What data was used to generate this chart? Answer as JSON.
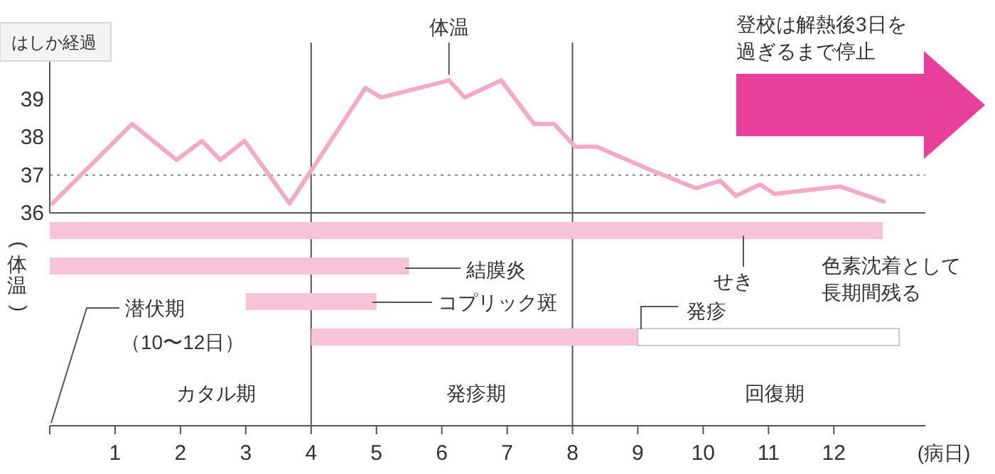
{
  "chart_data": [
    {
      "type": "line",
      "title": "はしか経過",
      "ylabel": "(体温)",
      "x": [
        0.04,
        1.26,
        1.94,
        2.33,
        2.61,
        2.98,
        3.67,
        4.83,
        5.07,
        6.11,
        6.35,
        6.91,
        7.41,
        7.72,
        8.04,
        8.37,
        9.24,
        9.89,
        10.26,
        10.5,
        10.87,
        11.09,
        12.09,
        12.76
      ],
      "values": [
        36.25,
        38.35,
        37.4,
        37.9,
        37.4,
        37.9,
        36.25,
        39.3,
        39.05,
        39.5,
        39.05,
        39.5,
        38.35,
        38.35,
        37.75,
        37.75,
        37.1,
        36.65,
        36.85,
        36.45,
        36.75,
        36.5,
        36.7,
        36.3
      ],
      "color": "#f4a9c6",
      "xlim": [
        0,
        13.4
      ],
      "ylim": [
        36,
        40.5
      ],
      "yticks": [
        36,
        37,
        38,
        39
      ],
      "tick_labels": "y",
      "grid": false,
      "marker": "none",
      "ref_lines": [
        {
          "axis": "y",
          "value": 37,
          "line_style": "dotted",
          "color": "#888888"
        },
        {
          "axis": "x",
          "value": 4,
          "color": "#555555"
        },
        {
          "axis": "x",
          "value": 8,
          "color": "#555555"
        }
      ],
      "annotations": [
        {
          "text": "体温",
          "x": 6.11,
          "y": 39.5
        },
        "登校は解熱後3日を",
        "過ぎるまで停止"
      ]
    },
    {
      "type": "bar",
      "orientation": "horizontal",
      "categories": [
        null,
        null,
        null,
        null,
        null,
        null
      ],
      "series": [
        {
          "color": "#f7c3d8",
          "base": [
            0,
            0,
            3,
            4,
            null,
            null
          ],
          "values": [
            12.75,
            5.5,
            2,
            5,
            null,
            null
          ]
        },
        {
          "color": "#ffffff",
          "base": [
            null,
            null,
            null,
            9,
            null,
            null
          ],
          "values": [
            null,
            null,
            null,
            4,
            null,
            null
          ]
        }
      ],
      "xlim": [
        0,
        13.4
      ],
      "xticks": [
        {
          "value": 0,
          "label": null
        },
        1,
        2,
        3,
        4,
        5,
        6,
        7,
        8,
        9,
        10,
        11,
        12
      ],
      "xlabel": "(病日)",
      "tick_labels": "x",
      "grid": false,
      "ref_lines": [
        {
          "axis": "x",
          "value": 4,
          "color": "#555555"
        },
        {
          "axis": "x",
          "value": 8,
          "color": "#555555"
        }
      ],
      "annotations": [
        "結膜炎",
        "コプリック斑",
        "せき",
        "発疹",
        "色素沈着として",
        "長期間残る",
        "潜伏期",
        "（10〜12日）",
        "カタル期",
        "発疹期",
        "回復期"
      ]
    }
  ]
}
